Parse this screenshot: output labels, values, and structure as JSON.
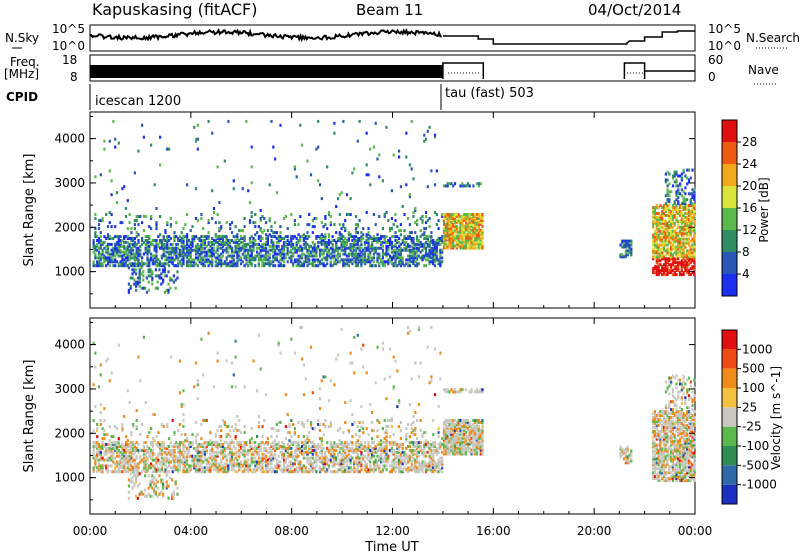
{
  "header": {
    "station": "Kapuskasing (fitACF)",
    "beam": "Beam 11",
    "date": "04/Oct/2014"
  },
  "strip_labels": {
    "nsky": "N.Sky",
    "nsearch": "N.Search",
    "freq": "Freq.",
    "freq_unit": "[MHz]",
    "nave": "Nave",
    "cpid": "CPID"
  },
  "nsky_ticks": [
    "10^5",
    "10^0"
  ],
  "freq_ticks": [
    "18",
    "8"
  ],
  "nave_ticks": [
    "60",
    "0"
  ],
  "modes": [
    {
      "label": "icescan 1200",
      "start_h": 0,
      "end_h": 14
    },
    {
      "label": "tau (fast) 503",
      "start_h": 14,
      "end_h": 24
    }
  ],
  "chart_data": [
    {
      "type": "heatmap",
      "title": "",
      "ylabel": "Slant Range [km]",
      "xlabel": "",
      "ylim": [
        180,
        4600
      ],
      "yticks": [
        "1000",
        "2000",
        "3000",
        "4000"
      ],
      "colorbar": {
        "label": "Power [dB]",
        "ticks": [
          "4",
          "8",
          "12",
          "16",
          "20",
          "24",
          "28"
        ],
        "colors": [
          "#1b2ff0",
          "#2a57b5",
          "#2f8c63",
          "#5bb84c",
          "#d8e43a",
          "#f1a81b",
          "#ee5a12",
          "#e01010"
        ]
      }
    },
    {
      "type": "heatmap",
      "title": "",
      "ylabel": "Slant Range [km]",
      "xlabel": "Time UT",
      "ylim": [
        180,
        4600
      ],
      "yticks": [
        "1000",
        "2000",
        "3000",
        "4000"
      ],
      "xticks": [
        "00:00",
        "04:00",
        "08:00",
        "12:00",
        "16:00",
        "20:00",
        "00:00"
      ],
      "colorbar": {
        "label": "Velocity [m s^-1]",
        "ticks": [
          "1000",
          "500",
          "100",
          "25",
          "-25",
          "-100",
          "-500",
          "-1000"
        ],
        "colors": [
          "#1b2fc0",
          "#2f6aa8",
          "#2f8c55",
          "#5bb84c",
          "#c8c8c0",
          "#f4c040",
          "#f08a1a",
          "#ee4a12",
          "#e01010"
        ]
      }
    }
  ]
}
